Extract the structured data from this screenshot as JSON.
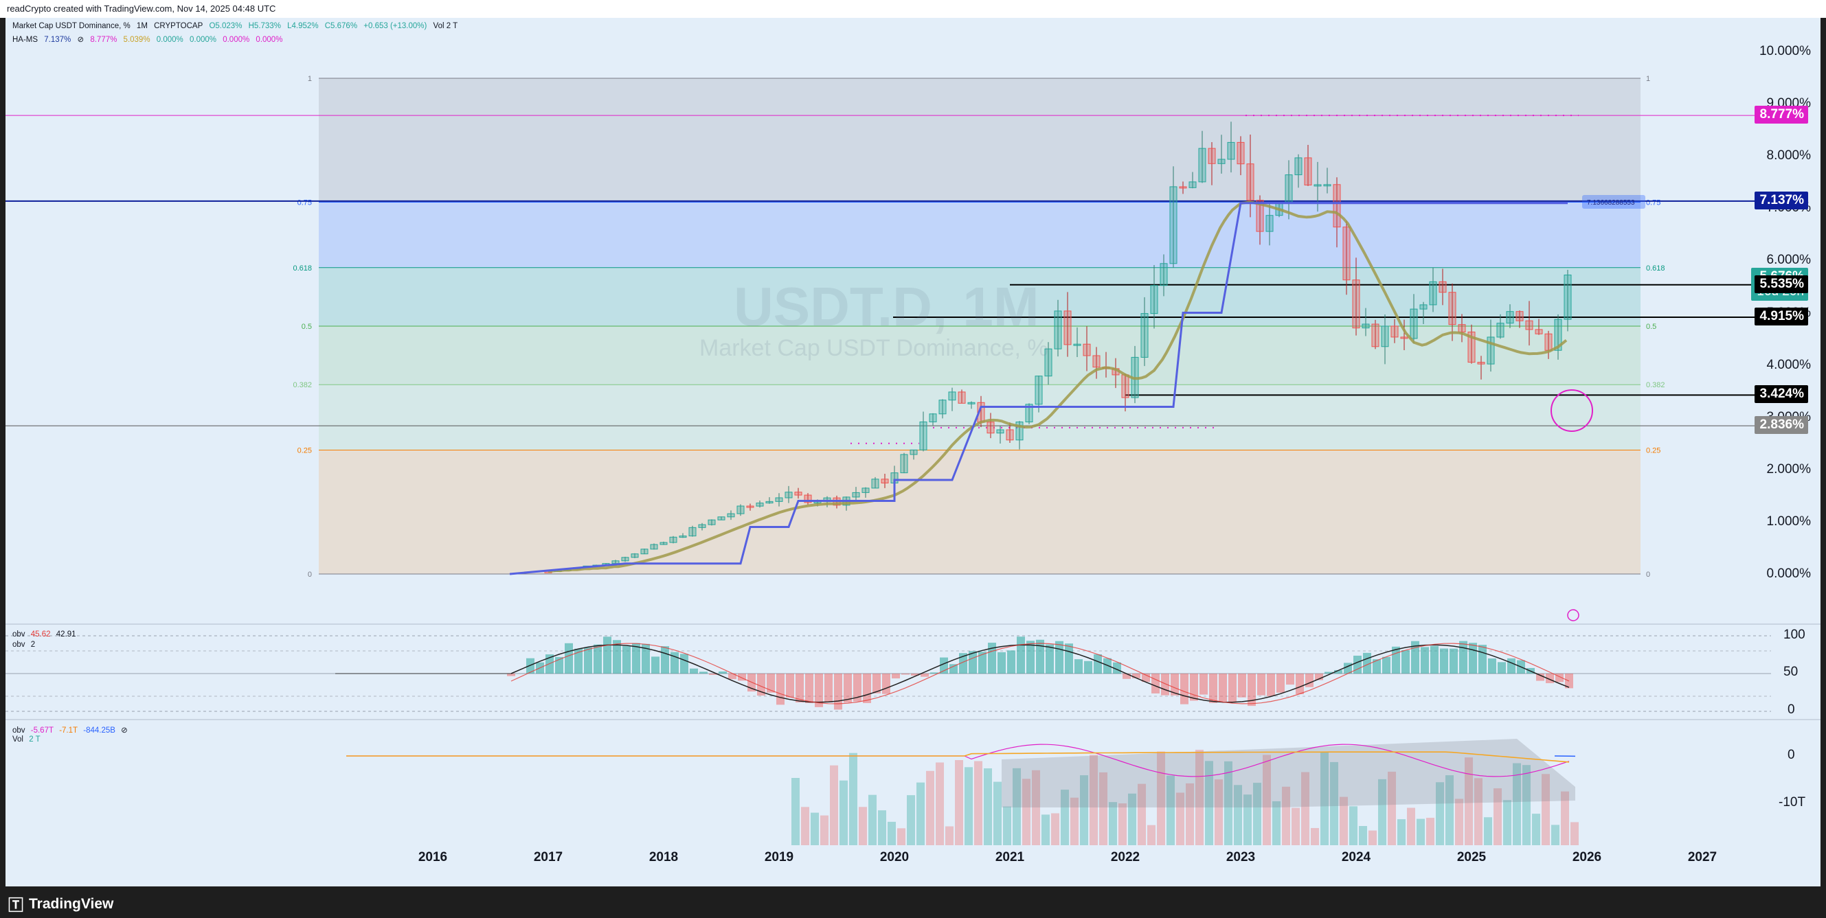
{
  "topbar": {
    "text": "readCrypto created with TradingView.com, Nov 14, 2025 04:48 UTC"
  },
  "legend": {
    "symbol": "Market Cap USDT Dominance, %",
    "interval": "1M",
    "exchange": "CRYPTOCAP",
    "open": "O5.023%",
    "high": "H5.733%",
    "low": "L4.952%",
    "close": "C5.676%",
    "change": "+0.653 (+13.00%)",
    "volume": "Vol 2 T",
    "indicator_name": "HA-MS",
    "ind_values": [
      "7.137%",
      "8.777%",
      "5.039%",
      "0.000%",
      "0.000%",
      "0.000%",
      "0.000%"
    ],
    "ind_colors": [
      "#1e3a9e",
      "#e020c8",
      "#c9a227",
      "#26a69a",
      "#26a69a",
      "#e020c8",
      "#e020c8"
    ]
  },
  "watermark": {
    "title": "USDT.D, 1M",
    "subtitle": "Market Cap USDT Dominance, %"
  },
  "y_axis": [
    "10.000%",
    "9.000%",
    "8.000%",
    "7.000%",
    "6.000%",
    "5.000%",
    "4.000%",
    "3.000%",
    "2.000%",
    "1.000%",
    "0.000%"
  ],
  "price_tags": [
    {
      "label": "8.777%",
      "bg": "#e020c8",
      "fg": "#ffffff",
      "value": 8.777
    },
    {
      "label": "7.137%",
      "bg": "#0d1e9a",
      "fg": "#ffffff",
      "value": 7.137
    },
    {
      "label": "5.676%",
      "sub": "16d 20h",
      "bg": "#26a69a",
      "fg": "#ffffff",
      "value": 5.676
    },
    {
      "label": "5.535%",
      "bg": "#000000",
      "fg": "#ffffff",
      "value": 5.535
    },
    {
      "label": "4.915%",
      "bg": "#000000",
      "fg": "#ffffff",
      "value": 4.915
    },
    {
      "label": "3.424%",
      "bg": "#000000",
      "fg": "#ffffff",
      "value": 3.424
    },
    {
      "label": "2.836%",
      "bg": "#888888",
      "fg": "#ffffff",
      "value": 2.836
    }
  ],
  "fib": {
    "levels": [
      {
        "ratio": "1",
        "color": "#787b86"
      },
      {
        "ratio": "0.75",
        "color": "#2962ff"
      },
      {
        "ratio": "0.618",
        "color": "#089981"
      },
      {
        "ratio": "0.5",
        "color": "#4caf50"
      },
      {
        "ratio": "0.382",
        "color": "#81c784"
      },
      {
        "ratio": "0.25",
        "color": "#f57c00"
      },
      {
        "ratio": "0",
        "color": "#787b86"
      }
    ],
    "label_075": "7.13668288553"
  },
  "x_axis": [
    "2016",
    "2017",
    "2018",
    "2019",
    "2020",
    "2021",
    "2022",
    "2023",
    "2024",
    "2025",
    "2026",
    "2027"
  ],
  "osc1": {
    "name1": "obv",
    "v1": "45.62",
    "v2": "42.91",
    "name2": "obv",
    "v3": "2",
    "scale": [
      "100",
      "50",
      "0"
    ]
  },
  "osc2": {
    "name1": "obv",
    "v1": "-5.67T",
    "v2": "-7.1T",
    "v3": "-844.25B",
    "name2": "Vol",
    "v4": "2 T",
    "scale": [
      "0",
      "-10T"
    ]
  },
  "brand": {
    "name": "TradingView"
  },
  "chart_data": {
    "type": "line",
    "title": "USDT.D, 1M",
    "series": [
      {
        "name": "Market Cap USDT Dominance, %",
        "x": [
          "2017-01",
          "2017-07",
          "2018-01",
          "2018-07",
          "2019-01",
          "2019-07",
          "2020-01",
          "2020-04",
          "2020-07",
          "2021-01",
          "2021-06",
          "2022-01",
          "2022-06",
          "2022-11",
          "2023-03",
          "2023-07",
          "2023-10",
          "2024-01",
          "2024-06",
          "2024-10",
          "2025-01",
          "2025-06",
          "2025-09",
          "2025-11"
        ],
        "values": [
          0.05,
          0.2,
          0.6,
          1.1,
          1.5,
          1.4,
          1.9,
          2.8,
          3.6,
          2.5,
          4.8,
          3.4,
          7.0,
          8.2,
          6.9,
          7.6,
          7.9,
          4.5,
          4.7,
          5.5,
          4.0,
          5.0,
          4.3,
          5.676
        ]
      }
    ],
    "ylim": [
      0,
      10
    ],
    "horizontal_levels": [
      8.777,
      7.137,
      5.535,
      4.915,
      3.424,
      2.836
    ]
  }
}
